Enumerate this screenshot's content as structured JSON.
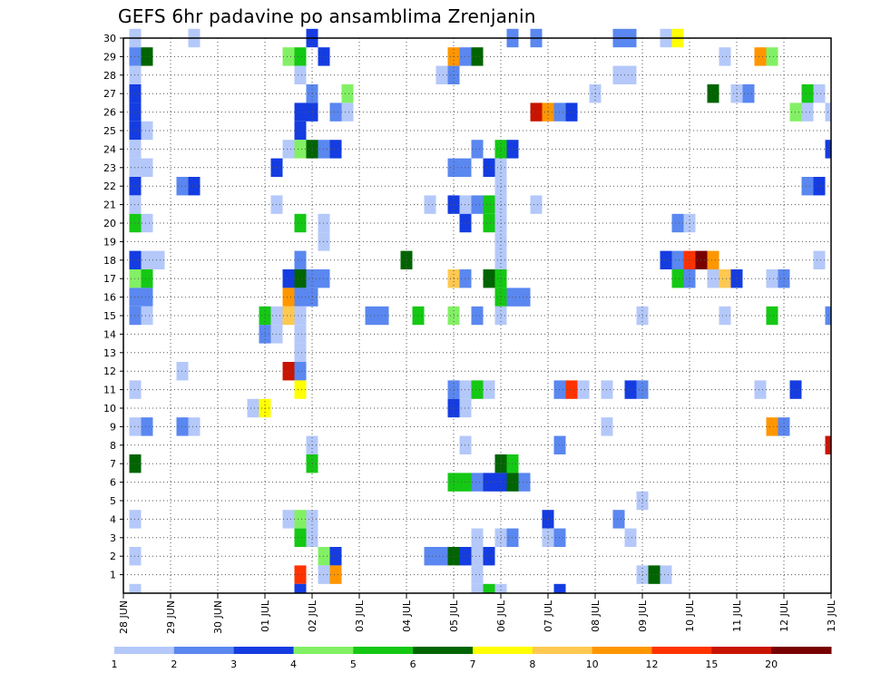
{
  "chart_data": {
    "type": "heatmap",
    "title": "GEFS 6hr padavine po ansamblima Zrenjanin",
    "x_tick_labels": [
      "28 JUN",
      "29 JUN",
      "30 JUN",
      "01 JUL",
      "02 JUL",
      "03 JUL",
      "04 JUL",
      "05 JUL",
      "06 JUL",
      "07 JUL",
      "08 JUL",
      "09 JUL",
      "10 JUL",
      "11 JUL",
      "12 JUL",
      "13 JUL"
    ],
    "y_tick_labels": [
      "1",
      "2",
      "3",
      "4",
      "5",
      "6",
      "7",
      "8",
      "9",
      "10",
      "11",
      "12",
      "13",
      "14",
      "15",
      "16",
      "17",
      "18",
      "19",
      "20",
      "21",
      "22",
      "23",
      "24",
      "25",
      "26",
      "27",
      "28",
      "29",
      "30"
    ],
    "x_range_steps": [
      0,
      60
    ],
    "y_range_members": [
      0,
      30
    ],
    "grid": true,
    "colorbar": {
      "ticks": [
        "1",
        "2",
        "3",
        "4",
        "5",
        "6",
        "7",
        "8",
        "10",
        "12",
        "15",
        "20"
      ],
      "colors": [
        "#b4c8fa",
        "#5a87f0",
        "#143ce1",
        "#82f064",
        "#14c814",
        "#006400",
        "#ffff00",
        "#ffc850",
        "#ff9600",
        "#ff3200",
        "#c81400",
        "#780000"
      ]
    },
    "cells_note": "each cell: [time_step (6h, 0 = 28 JUN 00z), member_row (0 = bottom), color_class (0 = 1-2 … 11 = >20)]",
    "cells": [
      [
        1,
        29,
        0
      ],
      [
        6,
        29,
        0
      ],
      [
        16,
        29,
        2
      ],
      [
        33,
        29,
        1
      ],
      [
        35,
        29,
        1
      ],
      [
        42,
        29,
        1
      ],
      [
        43,
        29,
        1
      ],
      [
        46,
        29,
        0
      ],
      [
        47,
        29,
        6
      ],
      [
        1,
        28,
        1
      ],
      [
        2,
        28,
        5
      ],
      [
        14,
        28,
        3
      ],
      [
        15,
        28,
        4
      ],
      [
        17,
        28,
        2
      ],
      [
        28,
        28,
        8
      ],
      [
        29,
        28,
        1
      ],
      [
        30,
        28,
        5
      ],
      [
        51,
        28,
        0
      ],
      [
        54,
        28,
        8
      ],
      [
        55,
        28,
        3
      ],
      [
        1,
        27,
        0
      ],
      [
        15,
        27,
        0
      ],
      [
        27,
        27,
        0
      ],
      [
        28,
        27,
        1
      ],
      [
        42,
        27,
        0
      ],
      [
        43,
        27,
        0
      ],
      [
        1,
        26,
        2
      ],
      [
        16,
        26,
        1
      ],
      [
        19,
        26,
        3
      ],
      [
        40,
        26,
        0
      ],
      [
        50,
        26,
        5
      ],
      [
        52,
        26,
        0
      ],
      [
        53,
        26,
        1
      ],
      [
        58,
        26,
        4
      ],
      [
        59,
        26,
        0
      ],
      [
        1,
        25,
        2
      ],
      [
        15,
        25,
        2
      ],
      [
        16,
        25,
        2
      ],
      [
        18,
        25,
        1
      ],
      [
        19,
        25,
        0
      ],
      [
        35,
        25,
        10
      ],
      [
        36,
        25,
        8
      ],
      [
        37,
        25,
        1
      ],
      [
        38,
        25,
        2
      ],
      [
        57,
        25,
        3
      ],
      [
        58,
        25,
        0
      ],
      [
        60,
        25,
        0
      ],
      [
        1,
        24,
        2
      ],
      [
        2,
        24,
        0
      ],
      [
        15,
        24,
        2
      ],
      [
        1,
        23,
        0
      ],
      [
        14,
        23,
        0
      ],
      [
        15,
        23,
        3
      ],
      [
        16,
        23,
        5
      ],
      [
        17,
        23,
        1
      ],
      [
        18,
        23,
        2
      ],
      [
        30,
        23,
        1
      ],
      [
        32,
        23,
        4
      ],
      [
        33,
        23,
        2
      ],
      [
        60,
        23,
        2
      ],
      [
        1,
        22,
        0
      ],
      [
        2,
        22,
        0
      ],
      [
        13,
        22,
        2
      ],
      [
        28,
        22,
        1
      ],
      [
        29,
        22,
        1
      ],
      [
        31,
        22,
        2
      ],
      [
        32,
        22,
        0
      ],
      [
        1,
        21,
        2
      ],
      [
        5,
        21,
        1
      ],
      [
        6,
        21,
        2
      ],
      [
        32,
        21,
        0
      ],
      [
        58,
        21,
        1
      ],
      [
        59,
        21,
        2
      ],
      [
        1,
        20,
        0
      ],
      [
        13,
        20,
        0
      ],
      [
        26,
        20,
        0
      ],
      [
        28,
        20,
        2
      ],
      [
        29,
        20,
        0
      ],
      [
        30,
        20,
        1
      ],
      [
        31,
        20,
        4
      ],
      [
        32,
        20,
        0
      ],
      [
        35,
        20,
        0
      ],
      [
        1,
        19,
        4
      ],
      [
        2,
        19,
        0
      ],
      [
        15,
        19,
        4
      ],
      [
        17,
        19,
        0
      ],
      [
        29,
        19,
        2
      ],
      [
        31,
        19,
        4
      ],
      [
        32,
        19,
        0
      ],
      [
        47,
        19,
        1
      ],
      [
        48,
        19,
        0
      ],
      [
        17,
        18,
        0
      ],
      [
        32,
        18,
        0
      ],
      [
        1,
        17,
        2
      ],
      [
        2,
        17,
        0
      ],
      [
        3,
        17,
        0
      ],
      [
        15,
        17,
        1
      ],
      [
        24,
        17,
        5
      ],
      [
        32,
        17,
        0
      ],
      [
        46,
        17,
        2
      ],
      [
        47,
        17,
        1
      ],
      [
        48,
        17,
        9
      ],
      [
        49,
        17,
        11
      ],
      [
        50,
        17,
        8
      ],
      [
        59,
        17,
        0
      ],
      [
        1,
        16,
        3
      ],
      [
        2,
        16,
        4
      ],
      [
        14,
        16,
        2
      ],
      [
        15,
        16,
        5
      ],
      [
        16,
        16,
        1
      ],
      [
        17,
        16,
        1
      ],
      [
        28,
        16,
        7
      ],
      [
        29,
        16,
        1
      ],
      [
        31,
        16,
        5
      ],
      [
        32,
        16,
        4
      ],
      [
        47,
        16,
        4
      ],
      [
        48,
        16,
        1
      ],
      [
        50,
        16,
        0
      ],
      [
        51,
        16,
        7
      ],
      [
        52,
        16,
        2
      ],
      [
        55,
        16,
        0
      ],
      [
        56,
        16,
        1
      ],
      [
        1,
        15,
        1
      ],
      [
        2,
        15,
        1
      ],
      [
        14,
        15,
        8
      ],
      [
        15,
        15,
        1
      ],
      [
        16,
        15,
        1
      ],
      [
        32,
        15,
        4
      ],
      [
        33,
        15,
        1
      ],
      [
        34,
        15,
        1
      ],
      [
        1,
        14,
        1
      ],
      [
        2,
        14,
        0
      ],
      [
        12,
        14,
        4
      ],
      [
        13,
        14,
        0
      ],
      [
        14,
        14,
        7
      ],
      [
        15,
        14,
        0
      ],
      [
        21,
        14,
        1
      ],
      [
        22,
        14,
        1
      ],
      [
        25,
        14,
        4
      ],
      [
        28,
        14,
        3
      ],
      [
        30,
        14,
        1
      ],
      [
        32,
        14,
        0
      ],
      [
        44,
        14,
        0
      ],
      [
        51,
        14,
        0
      ],
      [
        55,
        14,
        4
      ],
      [
        60,
        14,
        1
      ],
      [
        12,
        13,
        1
      ],
      [
        13,
        13,
        0
      ],
      [
        15,
        13,
        0
      ],
      [
        15,
        12,
        0
      ],
      [
        5,
        11,
        0
      ],
      [
        14,
        11,
        10
      ],
      [
        15,
        11,
        1
      ],
      [
        1,
        10,
        0
      ],
      [
        15,
        10,
        6
      ],
      [
        28,
        10,
        1
      ],
      [
        29,
        10,
        0
      ],
      [
        30,
        10,
        4
      ],
      [
        31,
        10,
        0
      ],
      [
        37,
        10,
        1
      ],
      [
        38,
        10,
        9
      ],
      [
        39,
        10,
        0
      ],
      [
        41,
        10,
        0
      ],
      [
        43,
        10,
        2
      ],
      [
        44,
        10,
        1
      ],
      [
        54,
        10,
        0
      ],
      [
        57,
        10,
        2
      ],
      [
        11,
        9,
        0
      ],
      [
        12,
        9,
        6
      ],
      [
        28,
        9,
        2
      ],
      [
        29,
        9,
        0
      ],
      [
        1,
        8,
        0
      ],
      [
        2,
        8,
        1
      ],
      [
        5,
        8,
        1
      ],
      [
        6,
        8,
        0
      ],
      [
        41,
        8,
        0
      ],
      [
        55,
        8,
        8
      ],
      [
        56,
        8,
        1
      ],
      [
        16,
        7,
        0
      ],
      [
        29,
        7,
        0
      ],
      [
        37,
        7,
        1
      ],
      [
        60,
        7,
        10
      ],
      [
        1,
        6,
        5
      ],
      [
        16,
        6,
        4
      ],
      [
        32,
        6,
        5
      ],
      [
        33,
        6,
        4
      ],
      [
        28,
        5,
        4
      ],
      [
        29,
        5,
        4
      ],
      [
        30,
        5,
        1
      ],
      [
        31,
        5,
        2
      ],
      [
        32,
        5,
        2
      ],
      [
        33,
        5,
        5
      ],
      [
        34,
        5,
        1
      ],
      [
        44,
        4,
        0
      ],
      [
        1,
        3,
        0
      ],
      [
        14,
        3,
        0
      ],
      [
        15,
        3,
        3
      ],
      [
        16,
        3,
        0
      ],
      [
        36,
        3,
        2
      ],
      [
        42,
        3,
        1
      ],
      [
        15,
        2,
        4
      ],
      [
        16,
        2,
        0
      ],
      [
        30,
        2,
        0
      ],
      [
        32,
        2,
        0
      ],
      [
        33,
        2,
        1
      ],
      [
        36,
        2,
        0
      ],
      [
        37,
        2,
        1
      ],
      [
        43,
        2,
        0
      ],
      [
        1,
        1,
        0
      ],
      [
        17,
        1,
        3
      ],
      [
        18,
        1,
        2
      ],
      [
        26,
        1,
        1
      ],
      [
        27,
        1,
        1
      ],
      [
        28,
        1,
        5
      ],
      [
        29,
        1,
        2
      ],
      [
        30,
        1,
        0
      ],
      [
        31,
        1,
        2
      ],
      [
        15,
        0,
        9
      ],
      [
        17,
        0,
        0
      ],
      [
        18,
        0,
        8
      ],
      [
        30,
        0,
        0
      ],
      [
        44,
        0,
        0
      ],
      [
        45,
        0,
        5
      ],
      [
        46,
        0,
        0
      ]
    ],
    "bottom_row_cells_note": "partial cells visible below the member-1 row",
    "bottom_row_cells": [
      [
        1,
        0
      ],
      [
        15,
        2
      ],
      [
        30,
        0
      ],
      [
        31,
        4
      ],
      [
        32,
        0
      ],
      [
        37,
        2
      ]
    ]
  }
}
